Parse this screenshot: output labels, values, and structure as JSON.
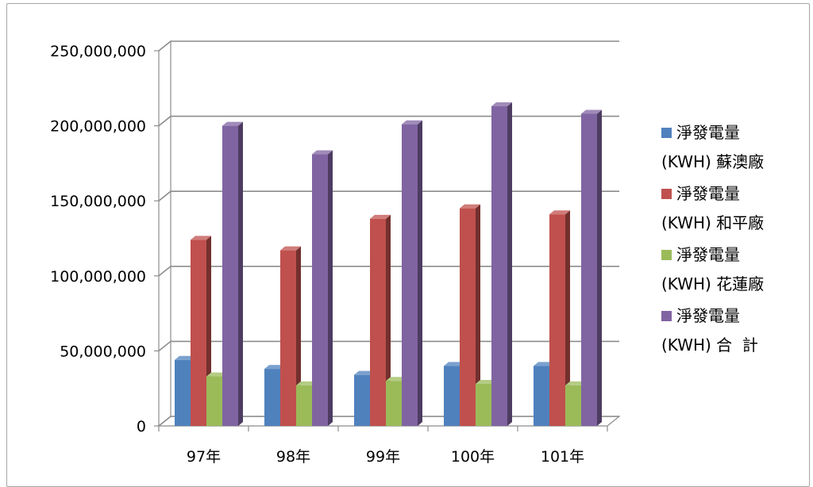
{
  "chart_data": {
    "type": "bar",
    "categories": [
      "97年",
      "98年",
      "99年",
      "100年",
      "101年"
    ],
    "ylim": [
      0,
      250000000
    ],
    "yticks": [
      0,
      50000000,
      100000000,
      150000000,
      200000000,
      250000000
    ],
    "ytick_labels": [
      "0",
      "50,000,000",
      "100,000,000",
      "150,000,000",
      "200,000,000",
      "250,000,000"
    ],
    "grid": true,
    "legend_position": "right",
    "series": [
      {
        "name_line1": "淨發電量",
        "name_line2": "(KWH) 蘇澳廠",
        "color": "#4f81bd",
        "values": [
          44000000,
          38000000,
          34000000,
          40000000,
          40000000
        ]
      },
      {
        "name_line1": "淨發電量",
        "name_line2": "(KWH) 和平廠",
        "color": "#c0504d",
        "values": [
          124000000,
          117000000,
          138000000,
          145000000,
          141000000
        ]
      },
      {
        "name_line1": "淨發電量",
        "name_line2": "(KWH) 花蓮廠",
        "color": "#9bbb59",
        "values": [
          33000000,
          27000000,
          30000000,
          28000000,
          27000000
        ]
      },
      {
        "name_line1": "淨發電量",
        "name_line2": "(KWH) 合  計",
        "color": "#8064a2",
        "values": [
          200000000,
          181000000,
          201000000,
          213000000,
          208000000
        ]
      }
    ]
  }
}
